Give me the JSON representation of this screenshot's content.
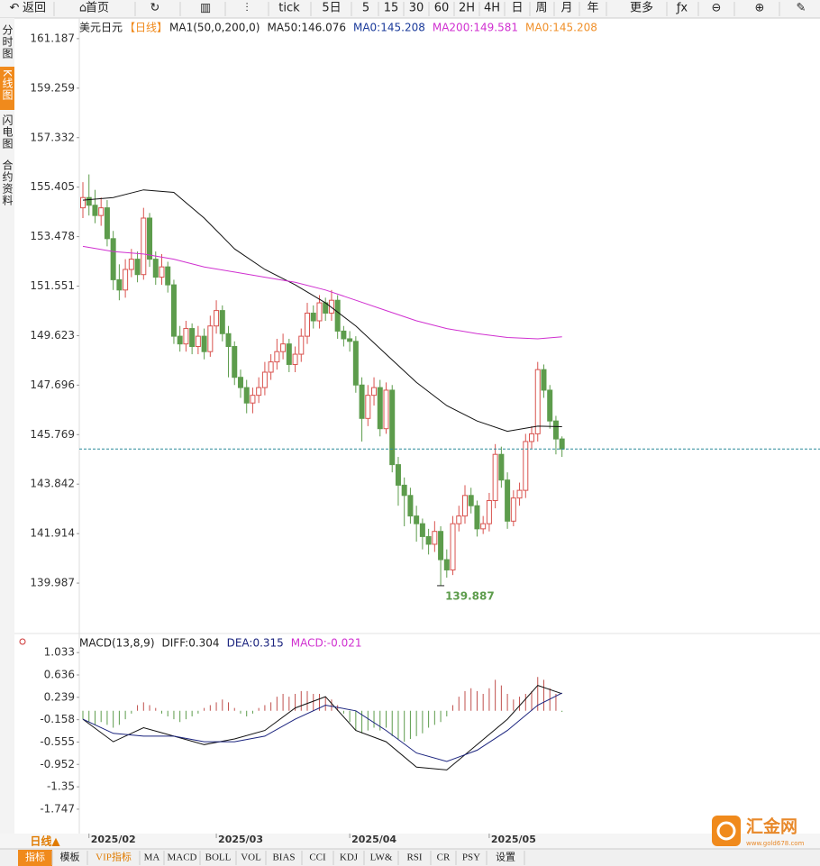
{
  "toolbar": [
    "返回",
    "首页",
    "tick",
    "5日",
    "5",
    "15",
    "30",
    "60",
    "2H",
    "4H",
    "日",
    "周",
    "月",
    "年",
    "更多"
  ],
  "side_tabs": [
    "分时图",
    "K线图",
    "闪电图",
    "合约资料"
  ],
  "period_button": "日线▲",
  "bottom_tabs": [
    "指标",
    "模板",
    "VIP指标",
    "MA",
    "MACD",
    "BOLL",
    "VOL",
    "BIAS",
    "CCI",
    "KDJ",
    "LW&",
    "RSI",
    "CR",
    "PSY",
    "设置"
  ],
  "watermark": {
    "name": "汇金网",
    "url": "www.gold678.com"
  },
  "chart_data": [
    {
      "type": "candlestick",
      "symbol": "美元日元",
      "period": "【日线】",
      "header": [
        {
          "text": "MA1(50,0,200,0)",
          "color": "#222"
        },
        {
          "text": "MA50:146.076",
          "color": "#222"
        },
        {
          "text": "MA0:145.208",
          "color": "#1a3a9a"
        },
        {
          "text": "MA200:149.581",
          "color": "#d030d0"
        },
        {
          "text": "MA0:145.208",
          "color": "#f0902a"
        }
      ],
      "ylim": [
        138.13,
        161.99
      ],
      "yticks": [
        161.187,
        159.259,
        157.332,
        155.405,
        153.478,
        151.551,
        149.623,
        147.696,
        145.769,
        143.842,
        141.914,
        139.987
      ],
      "up_color": "#d9534f",
      "down_color": "#5d9c4c",
      "last_line_color": "#2a8a9a",
      "candles": [
        [
          154.6,
          155.6,
          154.2,
          155.0
        ],
        [
          155.0,
          155.9,
          154.3,
          154.7
        ],
        [
          154.7,
          155.3,
          154.0,
          154.3
        ],
        [
          154.3,
          155.0,
          153.9,
          154.6
        ],
        [
          154.6,
          154.9,
          153.1,
          153.4
        ],
        [
          153.4,
          153.7,
          151.4,
          151.8
        ],
        [
          151.8,
          152.4,
          151.0,
          151.4
        ],
        [
          151.4,
          152.6,
          151.1,
          152.2
        ],
        [
          152.2,
          153.0,
          151.9,
          152.6
        ],
        [
          152.6,
          152.9,
          151.7,
          152.0
        ],
        [
          152.0,
          154.6,
          151.8,
          154.2
        ],
        [
          154.2,
          154.4,
          152.3,
          152.6
        ],
        [
          152.6,
          152.9,
          151.6,
          151.9
        ],
        [
          151.9,
          152.8,
          151.6,
          152.3
        ],
        [
          152.3,
          152.5,
          151.3,
          151.6
        ],
        [
          151.6,
          151.8,
          149.3,
          149.6
        ],
        [
          149.6,
          150.0,
          149.0,
          149.3
        ],
        [
          149.3,
          150.2,
          149.0,
          149.9
        ],
        [
          149.9,
          150.1,
          148.9,
          149.2
        ],
        [
          149.2,
          150.0,
          148.9,
          149.6
        ],
        [
          149.6,
          149.9,
          148.7,
          149.0
        ],
        [
          149.0,
          150.4,
          148.8,
          150.0
        ],
        [
          150.0,
          151.0,
          149.7,
          150.6
        ],
        [
          150.6,
          150.8,
          149.4,
          149.7
        ],
        [
          149.7,
          150.0,
          148.0,
          149.2
        ],
        [
          149.2,
          149.4,
          147.7,
          148.0
        ],
        [
          148.0,
          148.3,
          147.2,
          147.6
        ],
        [
          147.6,
          147.9,
          146.6,
          147.0
        ],
        [
          147.0,
          147.6,
          146.6,
          147.3
        ],
        [
          147.3,
          148.0,
          147.0,
          147.6
        ],
        [
          147.6,
          148.6,
          147.3,
          148.2
        ],
        [
          148.2,
          148.9,
          147.9,
          148.6
        ],
        [
          148.6,
          149.5,
          148.3,
          149.0
        ],
        [
          149.0,
          149.7,
          148.7,
          149.3
        ],
        [
          149.3,
          149.5,
          148.2,
          148.5
        ],
        [
          148.5,
          149.2,
          148.2,
          148.9
        ],
        [
          148.9,
          149.9,
          148.6,
          149.6
        ],
        [
          149.6,
          150.9,
          149.3,
          150.5
        ],
        [
          150.5,
          150.8,
          149.9,
          150.2
        ],
        [
          150.2,
          151.2,
          149.9,
          150.9
        ],
        [
          150.9,
          151.1,
          150.2,
          150.5
        ],
        [
          150.5,
          151.4,
          150.2,
          151.0
        ],
        [
          151.0,
          151.2,
          149.5,
          149.8
        ],
        [
          149.8,
          150.0,
          149.2,
          149.5
        ],
        [
          149.5,
          149.8,
          149.0,
          149.4
        ],
        [
          149.4,
          149.6,
          147.4,
          147.7
        ],
        [
          147.7,
          148.0,
          145.5,
          146.4
        ],
        [
          146.4,
          147.7,
          146.1,
          147.3
        ],
        [
          147.3,
          148.0,
          146.9,
          147.6
        ],
        [
          147.6,
          147.9,
          145.7,
          146.0
        ],
        [
          146.0,
          147.8,
          145.8,
          147.5
        ],
        [
          147.5,
          147.7,
          144.3,
          144.6
        ],
        [
          144.6,
          144.9,
          143.0,
          143.8
        ],
        [
          143.8,
          144.1,
          142.2,
          143.4
        ],
        [
          143.4,
          143.7,
          142.3,
          142.6
        ],
        [
          142.6,
          143.0,
          141.6,
          142.3
        ],
        [
          142.3,
          142.5,
          141.3,
          141.8
        ],
        [
          141.8,
          142.1,
          141.1,
          141.5
        ],
        [
          141.5,
          142.4,
          141.2,
          142.0
        ],
        [
          142.0,
          142.2,
          139.887,
          140.9
        ],
        [
          140.9,
          141.3,
          140.2,
          140.5
        ],
        [
          140.5,
          142.6,
          140.3,
          142.3
        ],
        [
          142.3,
          143.0,
          142.0,
          142.6
        ],
        [
          142.6,
          143.8,
          142.3,
          143.4
        ],
        [
          143.4,
          143.7,
          142.7,
          143.0
        ],
        [
          143.0,
          143.2,
          141.8,
          142.1
        ],
        [
          142.1,
          142.6,
          141.9,
          142.3
        ],
        [
          142.3,
          143.5,
          142.0,
          143.2
        ],
        [
          143.2,
          145.4,
          142.9,
          145.0
        ],
        [
          145.0,
          145.3,
          143.7,
          144.0
        ],
        [
          144.0,
          144.3,
          142.1,
          142.4
        ],
        [
          142.4,
          143.6,
          142.2,
          143.3
        ],
        [
          143.3,
          143.9,
          143.0,
          143.6
        ],
        [
          143.6,
          145.8,
          143.3,
          145.5
        ],
        [
          145.5,
          146.1,
          145.2,
          145.8
        ],
        [
          145.8,
          148.6,
          145.5,
          148.3
        ],
        [
          148.3,
          148.5,
          147.2,
          147.5
        ],
        [
          147.5,
          147.7,
          146.0,
          146.3
        ],
        [
          146.3,
          146.5,
          145.0,
          145.6
        ],
        [
          145.6,
          145.7,
          144.9,
          145.208
        ]
      ],
      "lines": [
        {
          "color": "#111",
          "x": [
            0,
            5,
            10,
            15,
            20,
            25,
            30,
            35,
            40,
            45,
            50,
            55,
            60,
            65,
            70,
            75,
            79
          ],
          "values": [
            154.9,
            155.0,
            155.3,
            155.2,
            154.2,
            153.0,
            152.2,
            151.6,
            150.9,
            150.0,
            148.9,
            147.8,
            146.9,
            146.3,
            145.9,
            146.1,
            146.076
          ]
        },
        {
          "color": "#d030d0",
          "x": [
            0,
            5,
            10,
            15,
            20,
            25,
            30,
            35,
            40,
            45,
            50,
            55,
            60,
            65,
            70,
            75,
            79
          ],
          "values": [
            153.1,
            152.9,
            152.8,
            152.6,
            152.3,
            152.1,
            151.9,
            151.7,
            151.4,
            151.0,
            150.6,
            150.2,
            149.9,
            149.7,
            149.55,
            149.5,
            149.581
          ]
        }
      ]
    },
    {
      "type": "macd",
      "header": [
        {
          "text": "MACD(13,8,9)",
          "color": "#222"
        },
        {
          "text": "DIFF:0.304",
          "color": "#222"
        },
        {
          "text": "DEA:0.315",
          "color": "#1a237e"
        },
        {
          "text": "MACD:-0.021",
          "color": "#d030d0"
        }
      ],
      "ylim": [
        -2.18,
        1.34
      ],
      "yticks": [
        1.033,
        0.636,
        0.239,
        -0.158,
        -0.555,
        -0.952,
        -1.35,
        -1.747
      ],
      "histogram": [
        -0.15,
        -0.2,
        -0.25,
        -0.2,
        -0.25,
        -0.3,
        -0.25,
        -0.15,
        -0.05,
        0.1,
        0.15,
        0.1,
        0.05,
        -0.05,
        -0.1,
        -0.15,
        -0.2,
        -0.15,
        -0.1,
        -0.05,
        0.05,
        0.1,
        0.15,
        0.2,
        0.15,
        0.05,
        -0.05,
        -0.1,
        -0.05,
        0.05,
        0.1,
        0.15,
        0.25,
        0.3,
        0.25,
        0.3,
        0.35,
        0.35,
        0.3,
        0.3,
        0.25,
        0.2,
        0.1,
        -0.05,
        -0.2,
        -0.35,
        -0.4,
        -0.35,
        -0.3,
        -0.35,
        -0.3,
        -0.45,
        -0.5,
        -0.55,
        -0.5,
        -0.45,
        -0.4,
        -0.3,
        -0.25,
        -0.2,
        -0.1,
        0.1,
        0.25,
        0.35,
        0.4,
        0.35,
        0.3,
        0.4,
        0.55,
        0.45,
        0.3,
        0.2,
        0.25,
        0.3,
        0.35,
        0.6,
        0.55,
        0.4,
        0.3,
        -0.021
      ],
      "up_color": "#c0504d",
      "down_color": "#5d9c4c",
      "lines": [
        {
          "color": "#111",
          "x": [
            0,
            5,
            10,
            15,
            20,
            25,
            30,
            35,
            40,
            45,
            50,
            55,
            60,
            65,
            70,
            75,
            79
          ],
          "values": [
            -0.15,
            -0.55,
            -0.3,
            -0.45,
            -0.6,
            -0.5,
            -0.35,
            0.05,
            0.25,
            -0.35,
            -0.55,
            -1.0,
            -1.05,
            -0.6,
            -0.15,
            0.45,
            0.304
          ]
        },
        {
          "color": "#1a237e",
          "x": [
            0,
            5,
            10,
            15,
            20,
            25,
            30,
            35,
            40,
            45,
            50,
            55,
            60,
            65,
            70,
            75,
            79
          ],
          "values": [
            -0.15,
            -0.4,
            -0.45,
            -0.45,
            -0.55,
            -0.55,
            -0.45,
            -0.15,
            0.1,
            0.0,
            -0.35,
            -0.75,
            -0.9,
            -0.7,
            -0.35,
            0.1,
            0.315
          ]
        }
      ],
      "x_labels": [
        {
          "value": 1,
          "label": "2025/02"
        },
        {
          "value": 22,
          "label": "2025/03"
        },
        {
          "value": 44,
          "label": "2025/04"
        },
        {
          "value": 67,
          "label": "2025/05"
        }
      ]
    }
  ]
}
